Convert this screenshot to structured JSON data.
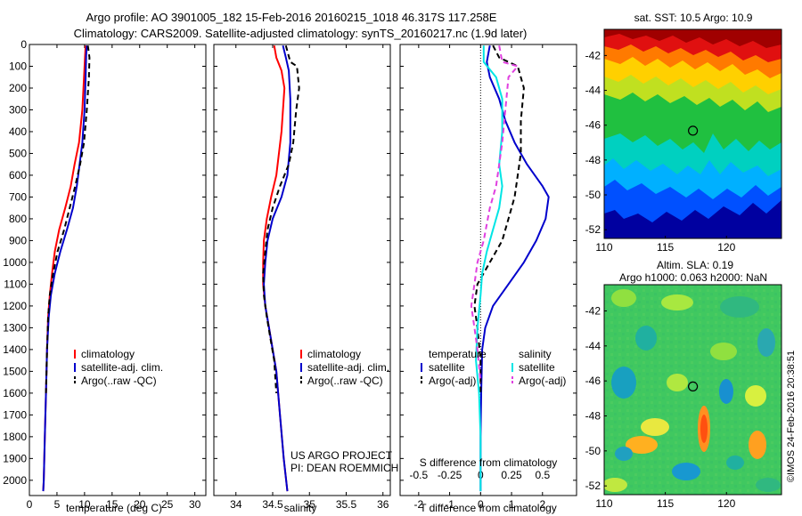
{
  "header": {
    "line1": "Argo profile: AO 3901005_182 15-Feb-2016 20160215_1018 46.317S 117.258E",
    "line2": "Climatology: CARS2009. Satellite-adjusted climatology: synTS_20160217.nc (1.9d later)"
  },
  "sidebar_stamp": "©IMOS 24-Feb-2016 20:38:51",
  "project_note": {
    "line1": "US ARGO PROJECT",
    "line2": "PI: DEAN ROEMMICH"
  },
  "colors": {
    "climatology": "#ff0000",
    "satellite": "#0000cc",
    "argo": "#000000",
    "salinity_sat": "#00e5e5",
    "salinity_argo": "#e040e0"
  },
  "chart_data": [
    {
      "id": "temperature",
      "type": "line",
      "xlabel": "temperature (deg C)",
      "xlim": [
        0,
        32
      ],
      "xticks": [
        0,
        5,
        10,
        15,
        20,
        25,
        30
      ],
      "ylim": [
        2070,
        0
      ],
      "yticks": [
        0,
        100,
        200,
        300,
        400,
        500,
        600,
        700,
        800,
        900,
        1000,
        1100,
        1200,
        1300,
        1400,
        1500,
        1600,
        1700,
        1800,
        1900,
        2000
      ],
      "legend": [
        "climatology",
        "satellite-adj. clim.",
        "Argo(..raw -QC)"
      ],
      "series": [
        {
          "name": "climatology",
          "color": "#ff0000",
          "style": "solid",
          "points": [
            [
              10.2,
              5
            ],
            [
              10.1,
              50
            ],
            [
              9.9,
              150
            ],
            [
              9.6,
              300
            ],
            [
              9.0,
              450
            ],
            [
              8.2,
              550
            ],
            [
              7.5,
              650
            ],
            [
              6.5,
              750
            ],
            [
              5.4,
              850
            ],
            [
              4.6,
              950
            ],
            [
              4.1,
              1050
            ],
            [
              3.7,
              1150
            ],
            [
              3.4,
              1250
            ],
            [
              3.2,
              1400
            ],
            [
              3.0,
              1600
            ],
            [
              2.8,
              1800
            ],
            [
              2.6,
              2000
            ],
            [
              2.5,
              2050
            ]
          ]
        },
        {
          "name": "satellite-adj. clim.",
          "color": "#0000cc",
          "style": "solid",
          "points": [
            [
              10.4,
              5
            ],
            [
              10.3,
              50
            ],
            [
              10.2,
              150
            ],
            [
              10.0,
              300
            ],
            [
              9.6,
              450
            ],
            [
              9.1,
              550
            ],
            [
              8.6,
              650
            ],
            [
              7.9,
              750
            ],
            [
              6.8,
              850
            ],
            [
              5.6,
              950
            ],
            [
              4.6,
              1050
            ],
            [
              3.9,
              1150
            ],
            [
              3.5,
              1250
            ],
            [
              3.2,
              1400
            ],
            [
              3.0,
              1600
            ],
            [
              2.8,
              1800
            ],
            [
              2.6,
              2000
            ],
            [
              2.5,
              2050
            ]
          ]
        },
        {
          "name": "Argo(..raw -QC)",
          "color": "#000000",
          "style": "dashed",
          "points": [
            [
              10.6,
              5
            ],
            [
              10.9,
              60
            ],
            [
              10.8,
              150
            ],
            [
              10.4,
              300
            ],
            [
              9.9,
              450
            ],
            [
              9.2,
              550
            ],
            [
              8.3,
              650
            ],
            [
              7.3,
              750
            ],
            [
              6.3,
              850
            ],
            [
              5.1,
              950
            ],
            [
              4.3,
              1050
            ],
            [
              3.7,
              1150
            ],
            [
              3.4,
              1250
            ],
            [
              3.2,
              1400
            ],
            [
              3.0,
              1600
            ]
          ]
        }
      ]
    },
    {
      "id": "salinity",
      "type": "line",
      "xlabel": "salinity",
      "xlim": [
        33.7,
        36.1
      ],
      "xticks": [
        34,
        34.5,
        35,
        35.5,
        36
      ],
      "xticklabels": [
        "34",
        "34.5",
        "35",
        "35.5",
        "36"
      ],
      "ylim": [
        2070,
        0
      ],
      "legend": [
        "climatology",
        "satellite-adj. clim.",
        "Argo(..raw -QC)"
      ],
      "series": [
        {
          "name": "climatology",
          "color": "#ff0000",
          "style": "solid",
          "points": [
            [
              34.52,
              5
            ],
            [
              34.55,
              60
            ],
            [
              34.62,
              120
            ],
            [
              34.66,
              200
            ],
            [
              34.62,
              400
            ],
            [
              34.55,
              600
            ],
            [
              34.48,
              700
            ],
            [
              34.42,
              800
            ],
            [
              34.38,
              900
            ],
            [
              34.37,
              1000
            ],
            [
              34.37,
              1100
            ],
            [
              34.4,
              1200
            ],
            [
              34.45,
              1300
            ],
            [
              34.5,
              1400
            ],
            [
              34.55,
              1500
            ],
            [
              34.6,
              1700
            ],
            [
              34.65,
              1900
            ],
            [
              34.7,
              2050
            ]
          ]
        },
        {
          "name": "satellite-adj. clim.",
          "color": "#0000cc",
          "style": "solid",
          "points": [
            [
              34.64,
              5
            ],
            [
              34.68,
              60
            ],
            [
              34.72,
              120
            ],
            [
              34.74,
              250
            ],
            [
              34.74,
              450
            ],
            [
              34.7,
              600
            ],
            [
              34.62,
              700
            ],
            [
              34.5,
              800
            ],
            [
              34.43,
              900
            ],
            [
              34.4,
              1000
            ],
            [
              34.38,
              1100
            ],
            [
              34.4,
              1200
            ],
            [
              34.45,
              1300
            ],
            [
              34.5,
              1400
            ],
            [
              34.55,
              1500
            ],
            [
              34.6,
              1700
            ],
            [
              34.65,
              1900
            ],
            [
              34.7,
              2050
            ]
          ]
        },
        {
          "name": "Argo(..raw -QC)",
          "color": "#000000",
          "style": "dashed",
          "points": [
            [
              34.68,
              5
            ],
            [
              34.74,
              80
            ],
            [
              34.83,
              100
            ],
            [
              34.86,
              200
            ],
            [
              34.82,
              300
            ],
            [
              34.78,
              450
            ],
            [
              34.72,
              550
            ],
            [
              34.6,
              650
            ],
            [
              34.5,
              750
            ],
            [
              34.43,
              850
            ],
            [
              34.4,
              950
            ],
            [
              34.37,
              1050
            ],
            [
              34.38,
              1150
            ],
            [
              34.42,
              1250
            ],
            [
              34.47,
              1350
            ],
            [
              34.52,
              1450
            ],
            [
              34.55,
              1600
            ]
          ]
        }
      ]
    },
    {
      "id": "difference",
      "type": "line",
      "xlabel": "T difference from climatology",
      "xlabel2": "S difference from climatology",
      "xlim": [
        -2.6,
        3.1
      ],
      "xticks": [
        -2,
        -1,
        0,
        1,
        2
      ],
      "xticks_top": [
        -0.5,
        -0.25,
        0,
        0.25,
        0.5
      ],
      "xticklabels_top": [
        "-0.5",
        "-0.25",
        "0",
        "0.25",
        "0.5"
      ],
      "ylim": [
        2070,
        0
      ],
      "legend_left_title": "temperature",
      "legend_right_title": "salinity",
      "legend_left": [
        "satellite",
        "Argo(-adj)"
      ],
      "legend_right": [
        "satellite",
        "Argo(-adj)"
      ],
      "series": [
        {
          "name": "T satellite",
          "color": "#0000cc",
          "style": "solid",
          "points": [
            [
              0.3,
              5
            ],
            [
              0.2,
              80
            ],
            [
              0.3,
              150
            ],
            [
              0.6,
              250
            ],
            [
              0.8,
              350
            ],
            [
              1.1,
              450
            ],
            [
              1.5,
              550
            ],
            [
              2.0,
              650
            ],
            [
              2.2,
              700
            ],
            [
              2.1,
              800
            ],
            [
              1.8,
              900
            ],
            [
              1.4,
              1000
            ],
            [
              0.9,
              1100
            ],
            [
              0.4,
              1200
            ],
            [
              0.15,
              1300
            ],
            [
              0.05,
              1400
            ],
            [
              0.02,
              1600
            ],
            [
              0.0,
              1800
            ],
            [
              0.0,
              2050
            ]
          ]
        },
        {
          "name": "T Argo(-adj)",
          "color": "#000000",
          "style": "dashed",
          "points": [
            [
              0.4,
              5
            ],
            [
              0.6,
              60
            ],
            [
              1.2,
              100
            ],
            [
              1.4,
              200
            ],
            [
              1.3,
              350
            ],
            [
              1.3,
              500
            ],
            [
              1.2,
              600
            ],
            [
              1.1,
              700
            ],
            [
              0.9,
              800
            ],
            [
              0.7,
              900
            ],
            [
              0.3,
              1000
            ],
            [
              -0.1,
              1100
            ],
            [
              -0.2,
              1200
            ],
            [
              -0.1,
              1300
            ],
            [
              0.0,
              1450
            ],
            [
              0.0,
              1600
            ]
          ]
        },
        {
          "name": "S satellite",
          "color": "#00e5e5",
          "style": "solid",
          "points": [
            [
              0.1,
              5
            ],
            [
              0.1,
              80
            ],
            [
              0.5,
              150
            ],
            [
              0.7,
              250
            ],
            [
              0.7,
              400
            ],
            [
              0.6,
              550
            ],
            [
              0.7,
              650
            ],
            [
              0.6,
              750
            ],
            [
              0.4,
              850
            ],
            [
              0.2,
              950
            ],
            [
              0.05,
              1050
            ],
            [
              0.0,
              1150
            ],
            [
              -0.1,
              1300
            ],
            [
              -0.15,
              1450
            ],
            [
              -0.05,
              1600
            ],
            [
              0.0,
              1800
            ],
            [
              0.0,
              2050
            ]
          ]
        },
        {
          "name": "S Argo(-adj)",
          "color": "#e040e0",
          "style": "dashed",
          "points": [
            [
              0.6,
              5
            ],
            [
              0.7,
              80
            ],
            [
              1.2,
              100
            ],
            [
              0.9,
              150
            ],
            [
              0.8,
              300
            ],
            [
              0.7,
              450
            ],
            [
              0.6,
              550
            ],
            [
              0.5,
              650
            ],
            [
              0.3,
              750
            ],
            [
              0.1,
              900
            ],
            [
              -0.1,
              1000
            ],
            [
              -0.2,
              1100
            ],
            [
              -0.3,
              1200
            ],
            [
              -0.2,
              1300
            ],
            [
              -0.1,
              1400
            ],
            [
              0.0,
              1550
            ]
          ]
        }
      ]
    },
    {
      "id": "sst_map",
      "type": "heatmap",
      "title": "sat. SST: 10.5 Argo: 10.9",
      "xlim": [
        110,
        124.5
      ],
      "ylim": [
        -52.5,
        -40.5
      ],
      "xticks": [
        110,
        115,
        120
      ],
      "yticks": [
        -42,
        -44,
        -46,
        -48,
        -50,
        -52
      ],
      "marker": [
        117.258,
        -46.317
      ]
    },
    {
      "id": "sla_map",
      "type": "heatmap",
      "title": "Altim. SLA: 0.19",
      "title2": "Argo h1000: 0.063 h2000: NaN",
      "xlim": [
        110,
        124.5
      ],
      "ylim": [
        -52.5,
        -40.5
      ],
      "xticks": [
        110,
        115,
        120
      ],
      "yticks": [
        -42,
        -44,
        -46,
        -48,
        -50,
        -52
      ],
      "marker": [
        117.258,
        -46.317
      ]
    }
  ]
}
